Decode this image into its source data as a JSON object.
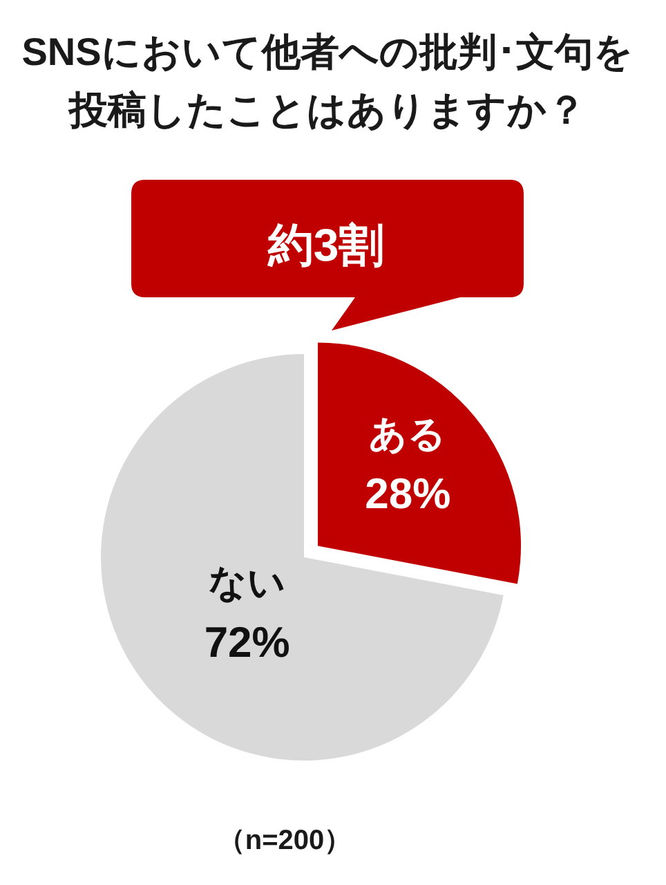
{
  "chart_data": {
    "type": "pie",
    "title": "SNSにおいて他者への批判･文句を投稿したことはありますか？",
    "categories": [
      "ある",
      "ない"
    ],
    "values": [
      28,
      72
    ],
    "colors": [
      "#c00000",
      "#d9d9d9"
    ],
    "value_labels": [
      "28%",
      "72%"
    ],
    "annotations": [
      "約3割",
      "（n=200）"
    ]
  }
}
